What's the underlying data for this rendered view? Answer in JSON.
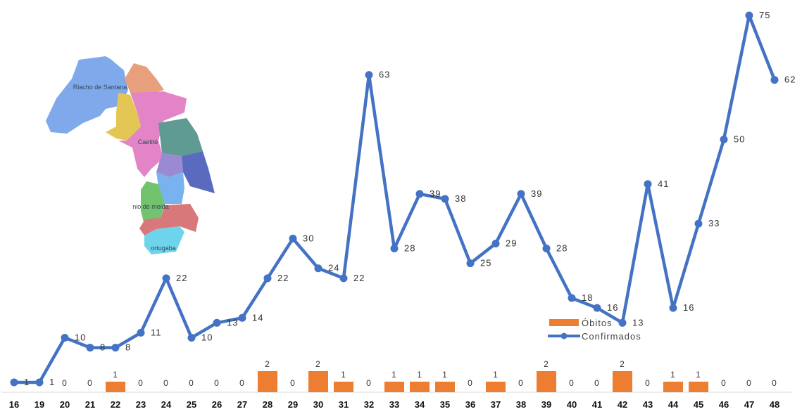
{
  "chart_data": {
    "type": "line",
    "categories": [
      "16",
      "19",
      "20",
      "21",
      "22",
      "23",
      "24",
      "25",
      "26",
      "27",
      "28",
      "29",
      "30",
      "31",
      "32",
      "33",
      "34",
      "35",
      "36",
      "37",
      "38",
      "39",
      "40",
      "41",
      "42",
      "43",
      "44",
      "45",
      "46",
      "47",
      "48"
    ],
    "series": [
      {
        "name": "Confirmados",
        "type": "line",
        "color": "#4472C4",
        "values": [
          1,
          1,
          10,
          8,
          8,
          11,
          22,
          10,
          13,
          14,
          22,
          30,
          24,
          22,
          63,
          28,
          39,
          38,
          25,
          29,
          39,
          28,
          18,
          16,
          13,
          41,
          16,
          33,
          50,
          75,
          62
        ]
      },
      {
        "name": "Óbitos",
        "type": "bar",
        "color": "#ED7D31",
        "values": [
          0,
          0,
          0,
          0,
          1,
          0,
          0,
          0,
          0,
          0,
          2,
          0,
          2,
          1,
          0,
          1,
          1,
          1,
          0,
          1,
          0,
          2,
          0,
          0,
          2,
          0,
          1,
          1,
          0,
          0,
          0
        ]
      }
    ],
    "line_labels": [
      "1",
      "1",
      "10",
      "8",
      "8",
      "11",
      "22",
      "10",
      "13",
      "14",
      "22",
      "30",
      "24",
      "22",
      "63",
      "28",
      "39",
      "38",
      "25",
      "29",
      "39",
      "28",
      "18",
      "16",
      "13",
      "41",
      "16",
      "33",
      "50",
      "75",
      "62"
    ],
    "bar_labels": [
      "0",
      "0",
      "0",
      "0",
      "1",
      "0",
      "0",
      "0",
      "0",
      "0",
      "2",
      "0",
      "2",
      "1",
      "0",
      "1",
      "1",
      "1",
      "0",
      "1",
      "0",
      "2",
      "0",
      "0",
      "2",
      "0",
      "1",
      "1",
      "0",
      "0",
      "0"
    ],
    "legend": {
      "position": "center-right",
      "entries": [
        "Óbitos",
        "Confirmados"
      ]
    },
    "grid": false
  },
  "map": {
    "labels": [
      "Riacho de Santana",
      "Caetité",
      "nio de meida",
      "ortugaba"
    ]
  }
}
